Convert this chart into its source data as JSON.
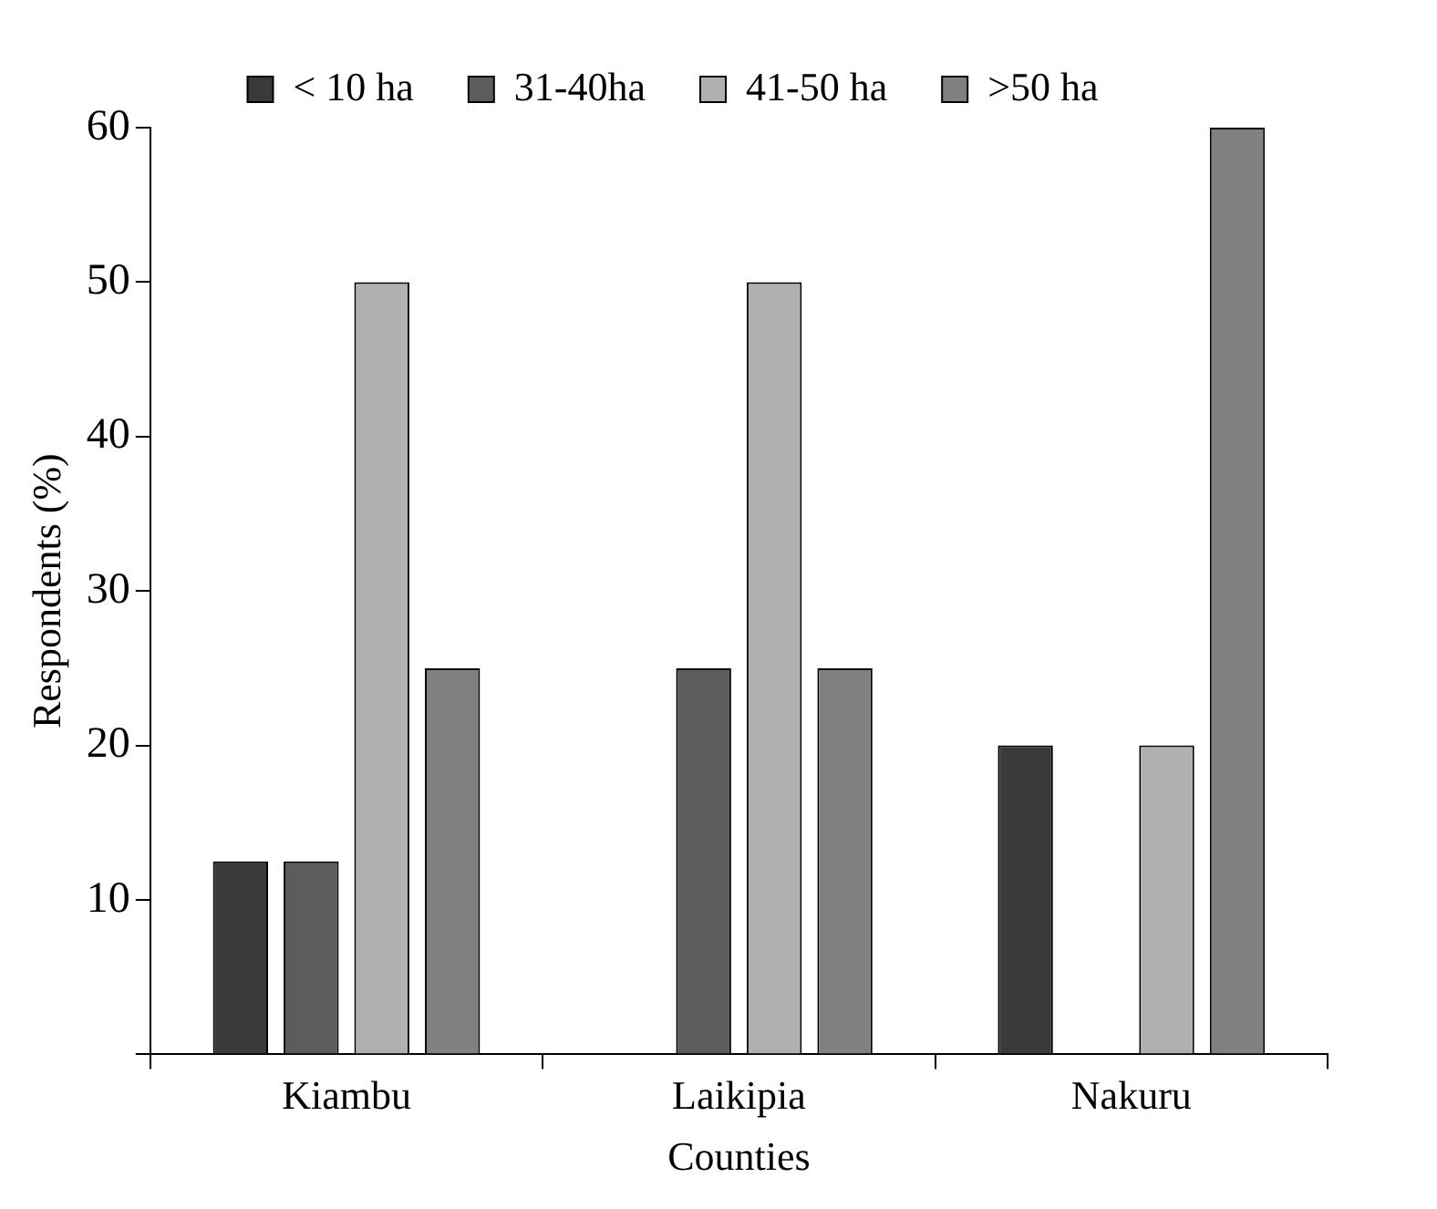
{
  "chart_data": {
    "type": "bar",
    "xlabel": "Counties",
    "ylabel": "Respondents (%)",
    "categories": [
      "Kiambu",
      "Laikipia",
      "Nakuru"
    ],
    "series": [
      {
        "name": "< 10 ha",
        "color": "#3a3a3a",
        "values": [
          12.5,
          0,
          20
        ]
      },
      {
        "name": "31-40ha",
        "color": "#5c5c5c",
        "values": [
          12.5,
          25,
          0
        ]
      },
      {
        "name": "41-50 ha",
        "color": "#b0b0b0",
        "values": [
          50,
          50,
          20
        ]
      },
      {
        "name": ">50 ha",
        "color": "#808080",
        "values": [
          25,
          25,
          60
        ]
      }
    ],
    "ylim": [
      0,
      60
    ],
    "yticks": [
      {
        "value": 0,
        "label": null
      },
      10,
      20,
      30,
      40,
      50,
      60
    ],
    "grid": false,
    "legend": "top"
  }
}
